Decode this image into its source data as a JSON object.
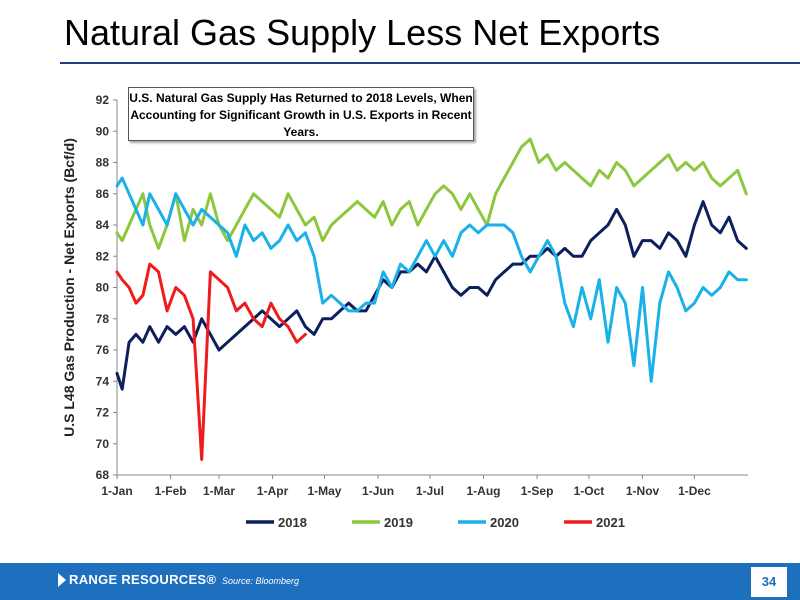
{
  "slide": {
    "title": "Natural Gas Supply Less Net Exports",
    "callout": "U.S. Natural Gas Supply Has Returned to 2018 Levels, When Accounting for Significant Growth in U.S. Exports in Recent Years.",
    "brand": "RANGE RESOURCES®",
    "source": "Source: Bloomberg",
    "page_number": "34"
  },
  "colors": {
    "2018": "#0d1f5c",
    "2019": "#8dc63f",
    "2020": "#1ab0e8",
    "2021": "#ee1c1c",
    "accent": "#1f6fbf"
  },
  "chart_data": {
    "type": "line",
    "title": "",
    "xlabel": "",
    "ylabel": "U.S L48 Gas Production - Net Exports (Bcf/d)",
    "ylim": [
      68,
      92
    ],
    "yticks": [
      68,
      70,
      72,
      74,
      76,
      78,
      80,
      82,
      84,
      86,
      88,
      90,
      92
    ],
    "xlim": [
      1,
      366
    ],
    "x_ticks": [
      {
        "label": "1-Jan",
        "day": 1
      },
      {
        "label": "1-Feb",
        "day": 32
      },
      {
        "label": "1-Mar",
        "day": 60
      },
      {
        "label": "1-Apr",
        "day": 91
      },
      {
        "label": "1-May",
        "day": 121
      },
      {
        "label": "1-Jun",
        "day": 152
      },
      {
        "label": "1-Jul",
        "day": 182
      },
      {
        "label": "1-Aug",
        "day": 213
      },
      {
        "label": "1-Sep",
        "day": 244
      },
      {
        "label": "1-Oct",
        "day": 274
      },
      {
        "label": "1-Nov",
        "day": 305
      },
      {
        "label": "1-Dec",
        "day": 335
      }
    ],
    "grid": false,
    "legend_position": "bottom",
    "series": [
      {
        "name": "2018",
        "color": "#0d1f5c",
        "x": [
          1,
          4,
          8,
          12,
          16,
          20,
          25,
          30,
          35,
          40,
          45,
          50,
          55,
          60,
          65,
          70,
          75,
          80,
          85,
          90,
          95,
          100,
          105,
          110,
          115,
          120,
          125,
          130,
          135,
          140,
          145,
          150,
          155,
          160,
          165,
          170,
          175,
          180,
          185,
          190,
          195,
          200,
          205,
          210,
          215,
          220,
          225,
          230,
          235,
          240,
          245,
          250,
          255,
          260,
          265,
          270,
          275,
          280,
          285,
          290,
          295,
          300,
          305,
          310,
          315,
          320,
          325,
          330,
          335,
          340,
          345,
          350,
          355,
          360,
          365
        ],
        "y": [
          74.5,
          73.5,
          76.5,
          77,
          76.5,
          77.5,
          76.5,
          77.5,
          77,
          77.5,
          76.5,
          78,
          77,
          76,
          76.5,
          77,
          77.5,
          78,
          78.5,
          78,
          77.5,
          78,
          78.5,
          77.5,
          77,
          78,
          78,
          78.5,
          79,
          78.5,
          78.5,
          79.5,
          80.5,
          80,
          81,
          81,
          81.5,
          81,
          82,
          81,
          80,
          79.5,
          80,
          80,
          79.5,
          80.5,
          81,
          81.5,
          81.5,
          82,
          82,
          82.5,
          82,
          82.5,
          82,
          82,
          83,
          83.5,
          84,
          85,
          84,
          82,
          83,
          83,
          82.5,
          83.5,
          83,
          82,
          84,
          85.5,
          84,
          83.5,
          84.5,
          83,
          82.5
        ]
      },
      {
        "name": "2019",
        "color": "#8dc63f",
        "x": [
          1,
          4,
          8,
          12,
          16,
          20,
          25,
          30,
          35,
          40,
          45,
          50,
          55,
          60,
          65,
          70,
          75,
          80,
          85,
          90,
          95,
          100,
          105,
          110,
          115,
          120,
          125,
          130,
          135,
          140,
          145,
          150,
          155,
          160,
          165,
          170,
          175,
          180,
          185,
          190,
          195,
          200,
          205,
          210,
          215,
          220,
          225,
          230,
          235,
          240,
          245,
          250,
          255,
          260,
          265,
          270,
          275,
          280,
          285,
          290,
          295,
          300,
          305,
          310,
          315,
          320,
          325,
          330,
          335,
          340,
          345,
          350,
          355,
          360,
          365
        ],
        "y": [
          83.5,
          83,
          84,
          85,
          86,
          84,
          82.5,
          84,
          86,
          83,
          85,
          84,
          86,
          84,
          83,
          84,
          85,
          86,
          85.5,
          85,
          84.5,
          86,
          85,
          84,
          84.5,
          83,
          84,
          84.5,
          85,
          85.5,
          85,
          84.5,
          85.5,
          84,
          85,
          85.5,
          84,
          85,
          86,
          86.5,
          86,
          85,
          86,
          85,
          84,
          86,
          87,
          88,
          89,
          89.5,
          88,
          88.5,
          87.5,
          88,
          87.5,
          87,
          86.5,
          87.5,
          87,
          88,
          87.5,
          86.5,
          87,
          87.5,
          88,
          88.5,
          87.5,
          88,
          87.5,
          88,
          87,
          86.5,
          87,
          87.5,
          86
        ]
      },
      {
        "name": "2020",
        "color": "#1ab0e8",
        "x": [
          1,
          4,
          8,
          12,
          16,
          20,
          25,
          30,
          35,
          40,
          45,
          50,
          55,
          60,
          65,
          70,
          75,
          80,
          85,
          90,
          95,
          100,
          105,
          110,
          115,
          120,
          125,
          130,
          135,
          140,
          145,
          150,
          155,
          160,
          165,
          170,
          175,
          180,
          185,
          190,
          195,
          200,
          205,
          210,
          215,
          220,
          225,
          230,
          235,
          240,
          245,
          250,
          255,
          260,
          265,
          270,
          275,
          280,
          285,
          290,
          295,
          300,
          305,
          310,
          315,
          320,
          325,
          330,
          335,
          340,
          345,
          350,
          355,
          360,
          365
        ],
        "y": [
          86.5,
          87,
          86,
          85,
          84,
          86,
          85,
          84,
          86,
          85,
          84,
          85,
          84.5,
          84,
          83.5,
          82,
          84,
          83,
          83.5,
          82.5,
          83,
          84,
          83,
          83.5,
          82,
          79,
          79.5,
          79,
          78.5,
          78.5,
          79,
          79,
          81,
          80,
          81.5,
          81,
          82,
          83,
          82,
          83,
          82,
          83.5,
          84,
          83.5,
          84,
          84,
          84,
          83.5,
          82,
          81,
          82,
          83,
          82,
          79,
          77.5,
          80,
          78,
          80.5,
          76.5,
          80,
          79,
          75,
          80,
          74,
          79,
          81,
          80,
          78.5,
          79,
          80,
          79.5,
          80,
          81,
          80.5,
          80.5
        ]
      },
      {
        "name": "2021",
        "color": "#ee1c1c",
        "x": [
          1,
          4,
          8,
          12,
          16,
          20,
          25,
          30,
          35,
          40,
          45,
          50,
          55,
          60,
          65,
          70,
          75,
          80,
          85,
          90,
          95,
          100,
          105,
          110
        ],
        "y": [
          81,
          80.5,
          80,
          79,
          79.5,
          81.5,
          81,
          78.5,
          80,
          79.5,
          78,
          69,
          81,
          80.5,
          80,
          78.5,
          79,
          78,
          77.5,
          79,
          78,
          77.5,
          76.5,
          77
        ]
      }
    ]
  }
}
